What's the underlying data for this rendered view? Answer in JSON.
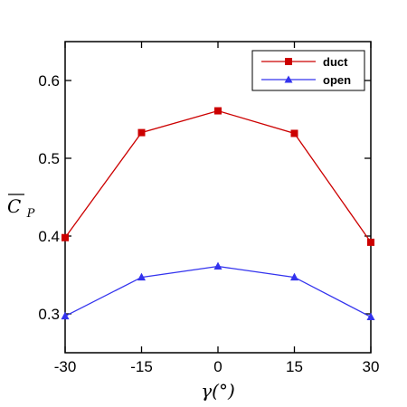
{
  "chart_data": {
    "type": "line",
    "x": [
      -30,
      -15,
      0,
      15,
      30
    ],
    "xticks": [
      "-30",
      "-15",
      "0",
      "15",
      "30"
    ],
    "yticks": [
      "0.3",
      "0.4",
      "0.5",
      "0.6"
    ],
    "xlabel": "γ(°)",
    "ylabel_base": "C",
    "ylabel_sub": "P",
    "xlim": [
      -30,
      30
    ],
    "ylim": [
      0.25,
      0.65
    ],
    "grid": false,
    "legend_position": "top-right",
    "series": [
      {
        "name": "duct",
        "color": "#cc0000",
        "marker": "square",
        "values": [
          0.398,
          0.533,
          0.561,
          0.532,
          0.392
        ]
      },
      {
        "name": "open",
        "color": "#3333ee",
        "marker": "triangle",
        "values": [
          0.297,
          0.347,
          0.361,
          0.347,
          0.296
        ]
      }
    ]
  }
}
